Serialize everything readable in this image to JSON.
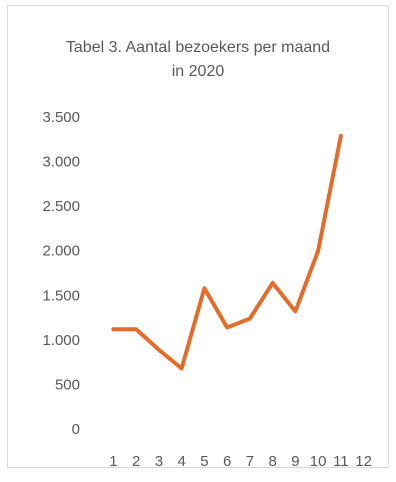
{
  "chart_data": {
    "type": "line",
    "title": "Tabel 3. Aantal bezoekers per maand in 2020",
    "categories": [
      "1",
      "2",
      "3",
      "4",
      "5",
      "6",
      "7",
      "8",
      "9",
      "10",
      "11",
      "12"
    ],
    "series": [
      {
        "color": "#e46c2a",
        "values": [
          1130,
          1130,
          900,
          690,
          1590,
          1150,
          1250,
          1650,
          1330,
          2010,
          3300,
          null
        ]
      }
    ],
    "ylim": [
      0,
      3500
    ],
    "yticks": [
      0,
      500,
      {
        "value": 1000,
        "label": "1.000"
      },
      {
        "value": 1500,
        "label": "1.500"
      },
      {
        "value": 2000,
        "label": "2.000"
      },
      {
        "value": 2500,
        "label": "2.500"
      },
      {
        "value": 3000,
        "label": "3.000"
      },
      {
        "value": 3500,
        "label": "3.500"
      }
    ],
    "grid": false
  }
}
